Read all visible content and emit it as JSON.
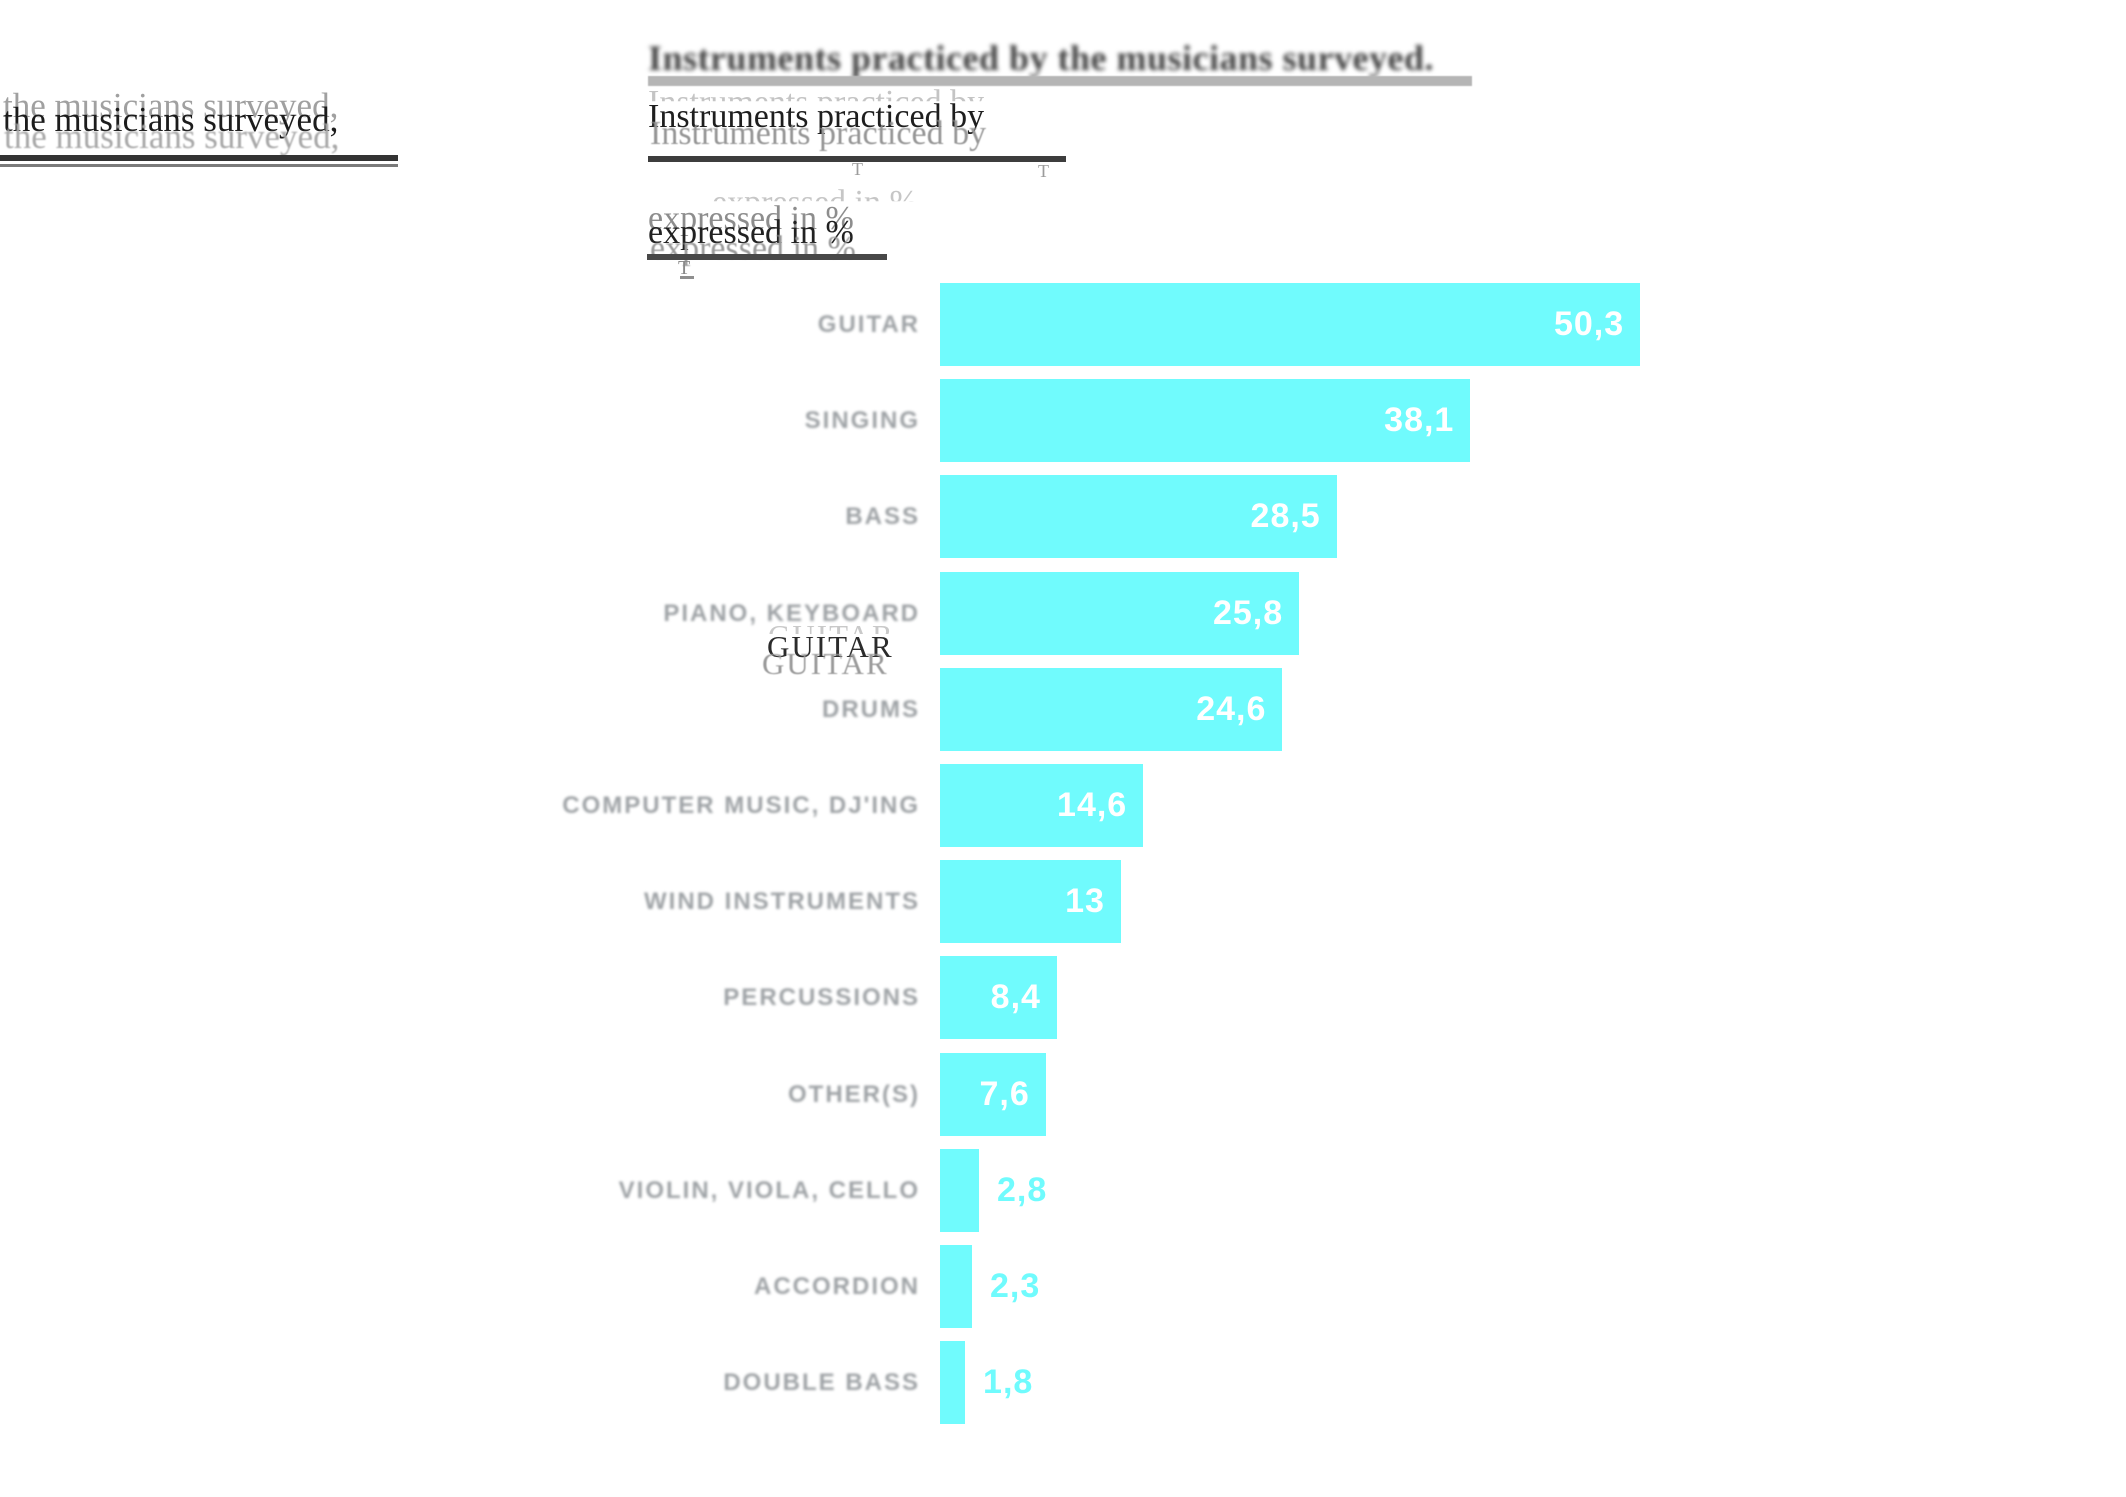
{
  "chart_data": {
    "type": "bar",
    "orientation": "horizontal",
    "title": "Instruments practiced by the musicians surveyed, expressed in %",
    "categories": [
      "GUITAR",
      "SINGING",
      "BASS",
      "PIANO, KEYBOARD",
      "DRUMS",
      "COMPUTER MUSIC, DJ'ING",
      "WIND INSTRUMENTS",
      "PERCUSSIONS",
      "OTHER(S)",
      "VIOLIN, VIOLA, CELLO",
      "ACCORDION",
      "DOUBLE BASS"
    ],
    "values": [
      50.3,
      38.1,
      28.5,
      25.8,
      24.6,
      14.6,
      13,
      8.4,
      7.6,
      2.8,
      2.3,
      1.8
    ],
    "display_values": [
      "50,3",
      "38,1",
      "28,5",
      "25,8",
      "24,6",
      "14,6",
      "13",
      "8,4",
      "7,6",
      "2,8",
      "2,3",
      "1,8"
    ],
    "xlim": [
      0,
      52
    ],
    "grid": false,
    "legend": false,
    "bar_color": "#70fbfd",
    "value_color_inside": "#ffffff",
    "value_color_outside": "#70fbfd",
    "label_color": "#9da1a4"
  },
  "ghost_layer": {
    "top_title": "Instruments practiced by the musicians surveyed.",
    "left_fragment": "the musicians surveyed,",
    "center_fragment": "Instruments practiced by",
    "subtitle_fragment": "expressed in %",
    "guitar_fragment": "GUITAR",
    "tick_fragment": "T"
  }
}
